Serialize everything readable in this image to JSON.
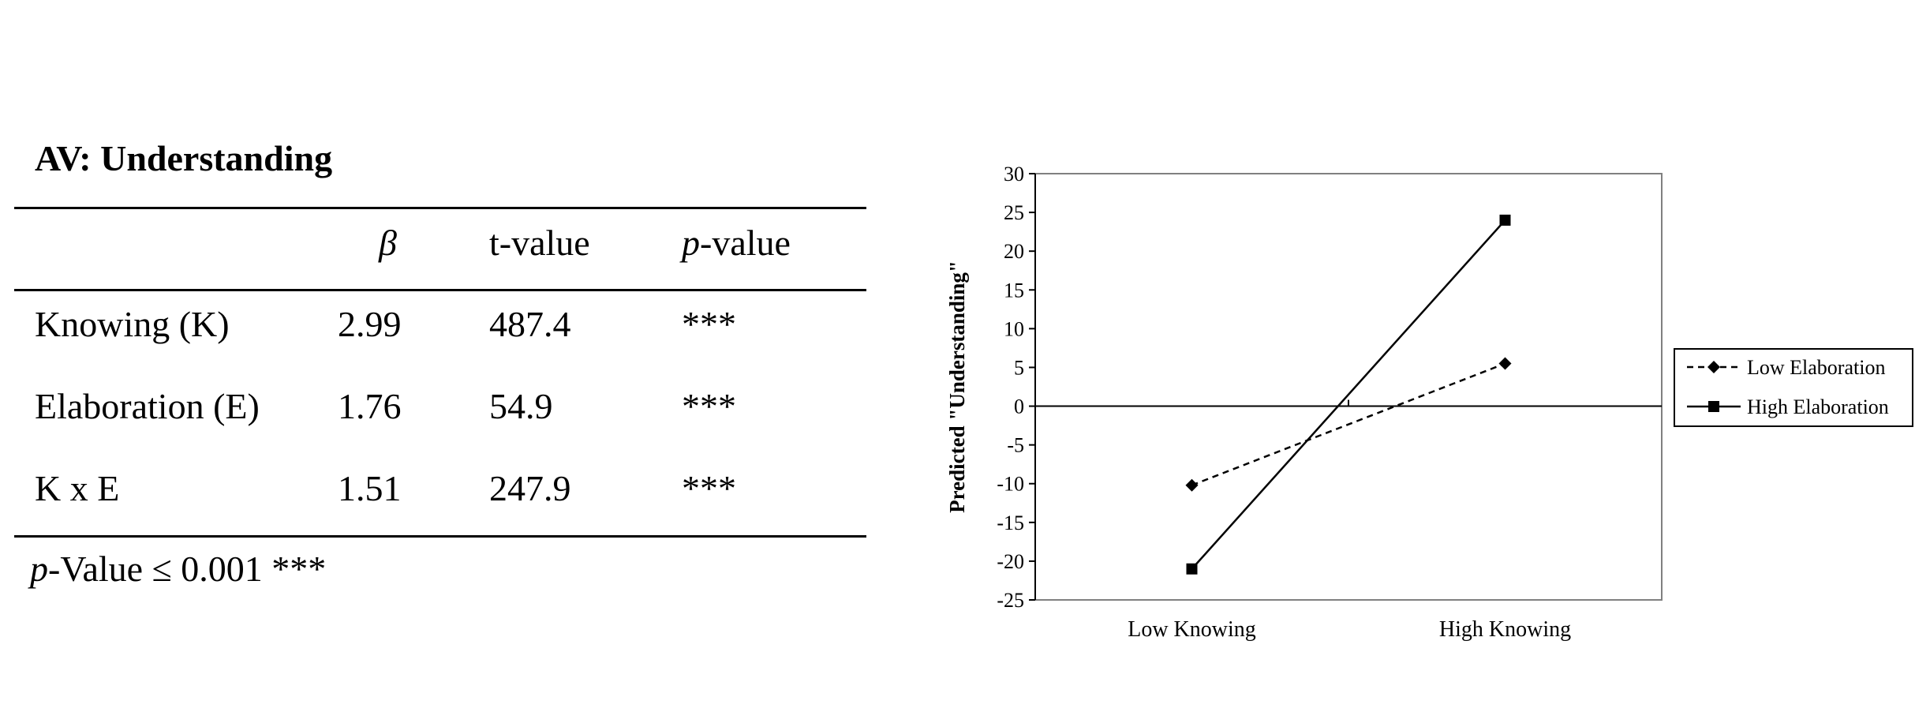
{
  "table": {
    "title": "AV: Understanding",
    "headers": {
      "beta": "β",
      "t": "t-value",
      "p_italic": "p",
      "p_rest": "-value"
    },
    "rows": [
      {
        "label": "Knowing (K)",
        "beta": "2.99",
        "t": "487.4",
        "p": "***"
      },
      {
        "label": "Elaboration (E)",
        "beta": "1.76",
        "t": "54.9",
        "p": "***"
      },
      {
        "label": "K x E",
        "beta": "1.51",
        "t": "247.9",
        "p": "***"
      }
    ],
    "footnote": {
      "italic": "p",
      "rest": "-Value ≤ 0.001 ***"
    }
  },
  "chart_data": {
    "type": "line",
    "title": "",
    "xlabel": "",
    "ylabel": "Predicted \"Understanding\"",
    "categories": [
      "Low Knowing",
      "High Knowing"
    ],
    "ylim": [
      -25,
      30
    ],
    "yticks": [
      30,
      25,
      20,
      15,
      10,
      5,
      0,
      -5,
      -10,
      -15,
      -20,
      -25
    ],
    "grid": false,
    "legend_position": "right",
    "series": [
      {
        "name": "Low Elaboration",
        "values": [
          -10.2,
          5.5
        ],
        "style": "dashed",
        "marker": "diamond"
      },
      {
        "name": "High Elaboration",
        "values": [
          -21,
          24
        ],
        "style": "solid",
        "marker": "square"
      }
    ]
  }
}
